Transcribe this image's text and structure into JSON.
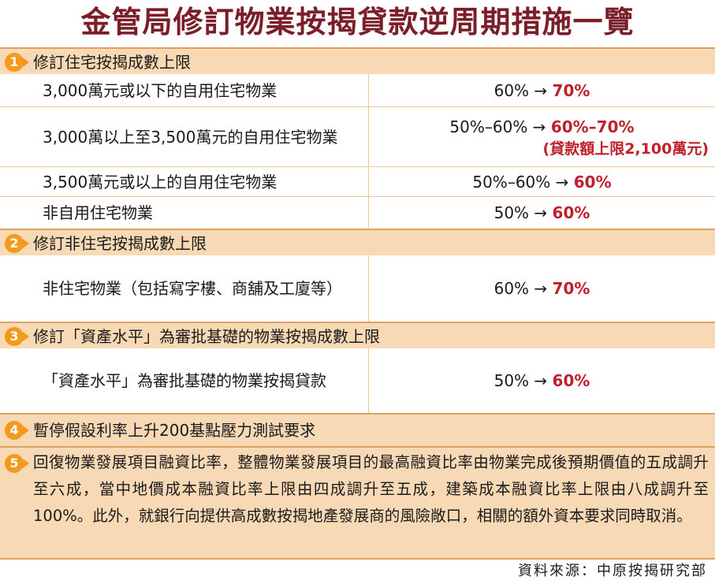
{
  "title": "金管局修訂物業按揭貸款逆周期措施一覽",
  "sections": [
    {
      "num": "1",
      "label": "修訂住宅按揭成數上限",
      "rows": [
        {
          "desc": "3,000萬元或以下的自用住宅物業",
          "old": "60% → ",
          "new": "70%",
          "note": ""
        },
        {
          "desc": "3,000萬以上至3,500萬元的自用住宅物業",
          "old": "50%–60% → ",
          "new": "60%–70%",
          "note": "(貸款額上限2,100萬元)"
        },
        {
          "desc": "3,500萬元或以上的自用住宅物業",
          "old": "50%–60% → ",
          "new": "60%",
          "note": ""
        },
        {
          "desc": "非自用住宅物業",
          "old": "50% → ",
          "new": "60%",
          "note": ""
        }
      ]
    },
    {
      "num": "2",
      "label": "修訂非住宅按揭成數上限",
      "rows": [
        {
          "desc": "非住宅物業（包括寫字樓、商舖及工廈等）",
          "old": "60% → ",
          "new": "70%",
          "note": ""
        }
      ]
    },
    {
      "num": "3",
      "label": "修訂「資產水平」為審批基礎的物業按揭成數上限",
      "rows": [
        {
          "desc": "「資產水平」為審批基礎的物業按揭貸款",
          "old": "50% → ",
          "new": "60%",
          "note": ""
        }
      ]
    },
    {
      "num": "4",
      "label": "暫停假設利率上升200基點壓力測試要求",
      "rows": []
    },
    {
      "num": "5",
      "label": "回復物業發展項目融資比率，整體物業發展項目的最高融資比率由物業完成後預期價值的五成調升至六成，當中地價成本融資比率上限由四成調升至五成，建築成本融資比率上限由八成調升至100%。此外，就銀行向提供高成數按揭地產發展商的風險敞口，相關的額外資本要求同時取消。",
      "rows": []
    }
  ],
  "source": "資料來源：中原按揭研究部"
}
